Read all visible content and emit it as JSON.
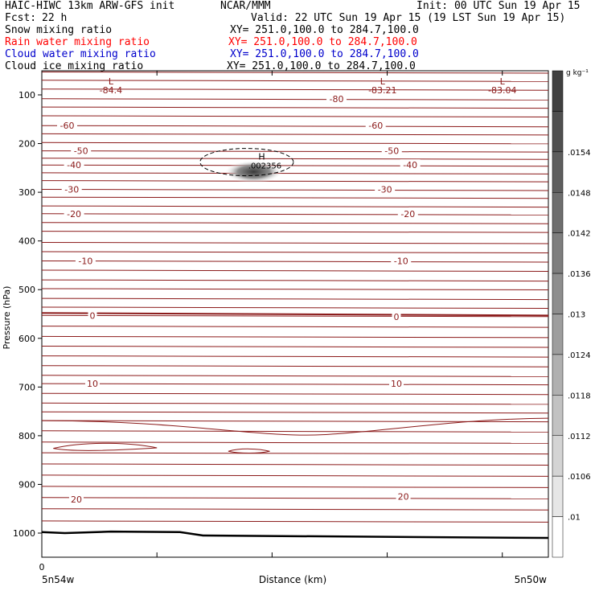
{
  "header": {
    "model": "HAIC-HIWC 13km ARW-GFS init",
    "org": "NCAR/MMM",
    "init": "Init: 00 UTC Sun 19 Apr 15",
    "fcst_label": "Fcst:",
    "fcst_value": "22 h",
    "valid": "Valid: 22 UTC Sun 19 Apr 15 (19 LST Sun 19 Apr 15)"
  },
  "variables": [
    {
      "name": "Snow mixing ratio",
      "xy": "XY= 251.0,100.0 to 284.7,100.0",
      "color": "#000000"
    },
    {
      "name": "Rain water mixing ratio",
      "xy": "XY= 251.0,100.0 to 284.7,100.0",
      "color": "#ff0000"
    },
    {
      "name": "Cloud water mixing ratio",
      "xy": "XY= 251.0,100.0 to 284.7,100.0",
      "color": "#0000cc"
    },
    {
      "name": "Cloud ice mixing ratio",
      "xy": "XY= 251.0,100.0 to 284.7,100.0",
      "color": "#000000"
    }
  ],
  "chart_data": {
    "type": "contour",
    "ylabel": "Pressure (hPa)",
    "xlabel": "Distance (km)",
    "x_start_tick": "0",
    "x_left_label": "5n54w",
    "x_right_label": "5n50w",
    "y_ticks": [
      100,
      200,
      300,
      400,
      500,
      600,
      700,
      800,
      900,
      1000
    ],
    "ylim": [
      50,
      1050
    ],
    "xlim": [
      0,
      220
    ],
    "x_ticks": [
      0,
      50,
      100,
      150,
      200
    ],
    "colorbar": {
      "unit": "g kg⁻¹",
      "labels": [
        ".0154",
        ".0148",
        ".0142",
        ".0136",
        ".013",
        ".0124",
        ".0118",
        ".0112",
        ".0106",
        ".01"
      ],
      "level_colors": [
        "#404040",
        "#505050",
        "#5e5e5e",
        "#6e6e6e",
        "#7e7e7e",
        "#8e8e8e",
        "#9e9e9e",
        "#b0b0b0",
        "#c2c2c2",
        "#d4d4d4",
        "#e6e6e6",
        "#ffffff"
      ]
    },
    "temperature_contour_color": "#8b1a1a",
    "isotherm_labels": [
      {
        "label": "-80",
        "x": 128,
        "p": 108
      },
      {
        "label": "-60",
        "x": 11,
        "p": 163
      },
      {
        "label": "-60",
        "x": 145,
        "p": 163
      },
      {
        "label": "-50",
        "x": 17,
        "p": 215
      },
      {
        "label": "-50",
        "x": 152,
        "p": 215
      },
      {
        "label": "-40",
        "x": 14,
        "p": 244
      },
      {
        "label": "-40",
        "x": 160,
        "p": 244
      },
      {
        "label": "-30",
        "x": 13,
        "p": 294
      },
      {
        "label": "-30",
        "x": 149,
        "p": 294
      },
      {
        "label": "-20",
        "x": 14,
        "p": 344
      },
      {
        "label": "-20",
        "x": 159,
        "p": 344
      },
      {
        "label": "-10",
        "x": 19,
        "p": 441
      },
      {
        "label": "-10",
        "x": 156,
        "p": 441
      },
      {
        "label": "0",
        "x": 22,
        "p": 553
      },
      {
        "label": "0",
        "x": 154,
        "p": 556
      },
      {
        "label": "10",
        "x": 22,
        "p": 693
      },
      {
        "label": "10",
        "x": 154,
        "p": 693
      },
      {
        "label": "20",
        "x": 15,
        "p": 931
      },
      {
        "label": "20",
        "x": 157,
        "p": 925
      }
    ],
    "lows": [
      {
        "letter": "L",
        "value": "-84.4",
        "x": 30,
        "p": 80
      },
      {
        "letter": "L",
        "value": "-83.21",
        "x": 148,
        "p": 80
      },
      {
        "letter": "L",
        "value": "-83.04",
        "x": 200,
        "p": 80
      }
    ],
    "high": {
      "letter": "H",
      "value": ".002356",
      "x": 92,
      "p": 230
    },
    "isotherms_p": [
      53,
      70,
      88,
      108,
      125,
      143,
      163,
      180,
      198,
      215,
      230,
      244,
      260,
      276,
      294,
      310,
      328,
      344,
      362,
      380,
      403,
      422,
      441,
      460,
      480,
      498,
      518,
      536,
      553,
      575,
      596,
      616,
      636,
      656,
      676,
      693,
      713,
      733,
      751,
      769,
      790,
      813,
      835,
      858,
      881,
      904,
      927,
      950,
      975
    ]
  }
}
